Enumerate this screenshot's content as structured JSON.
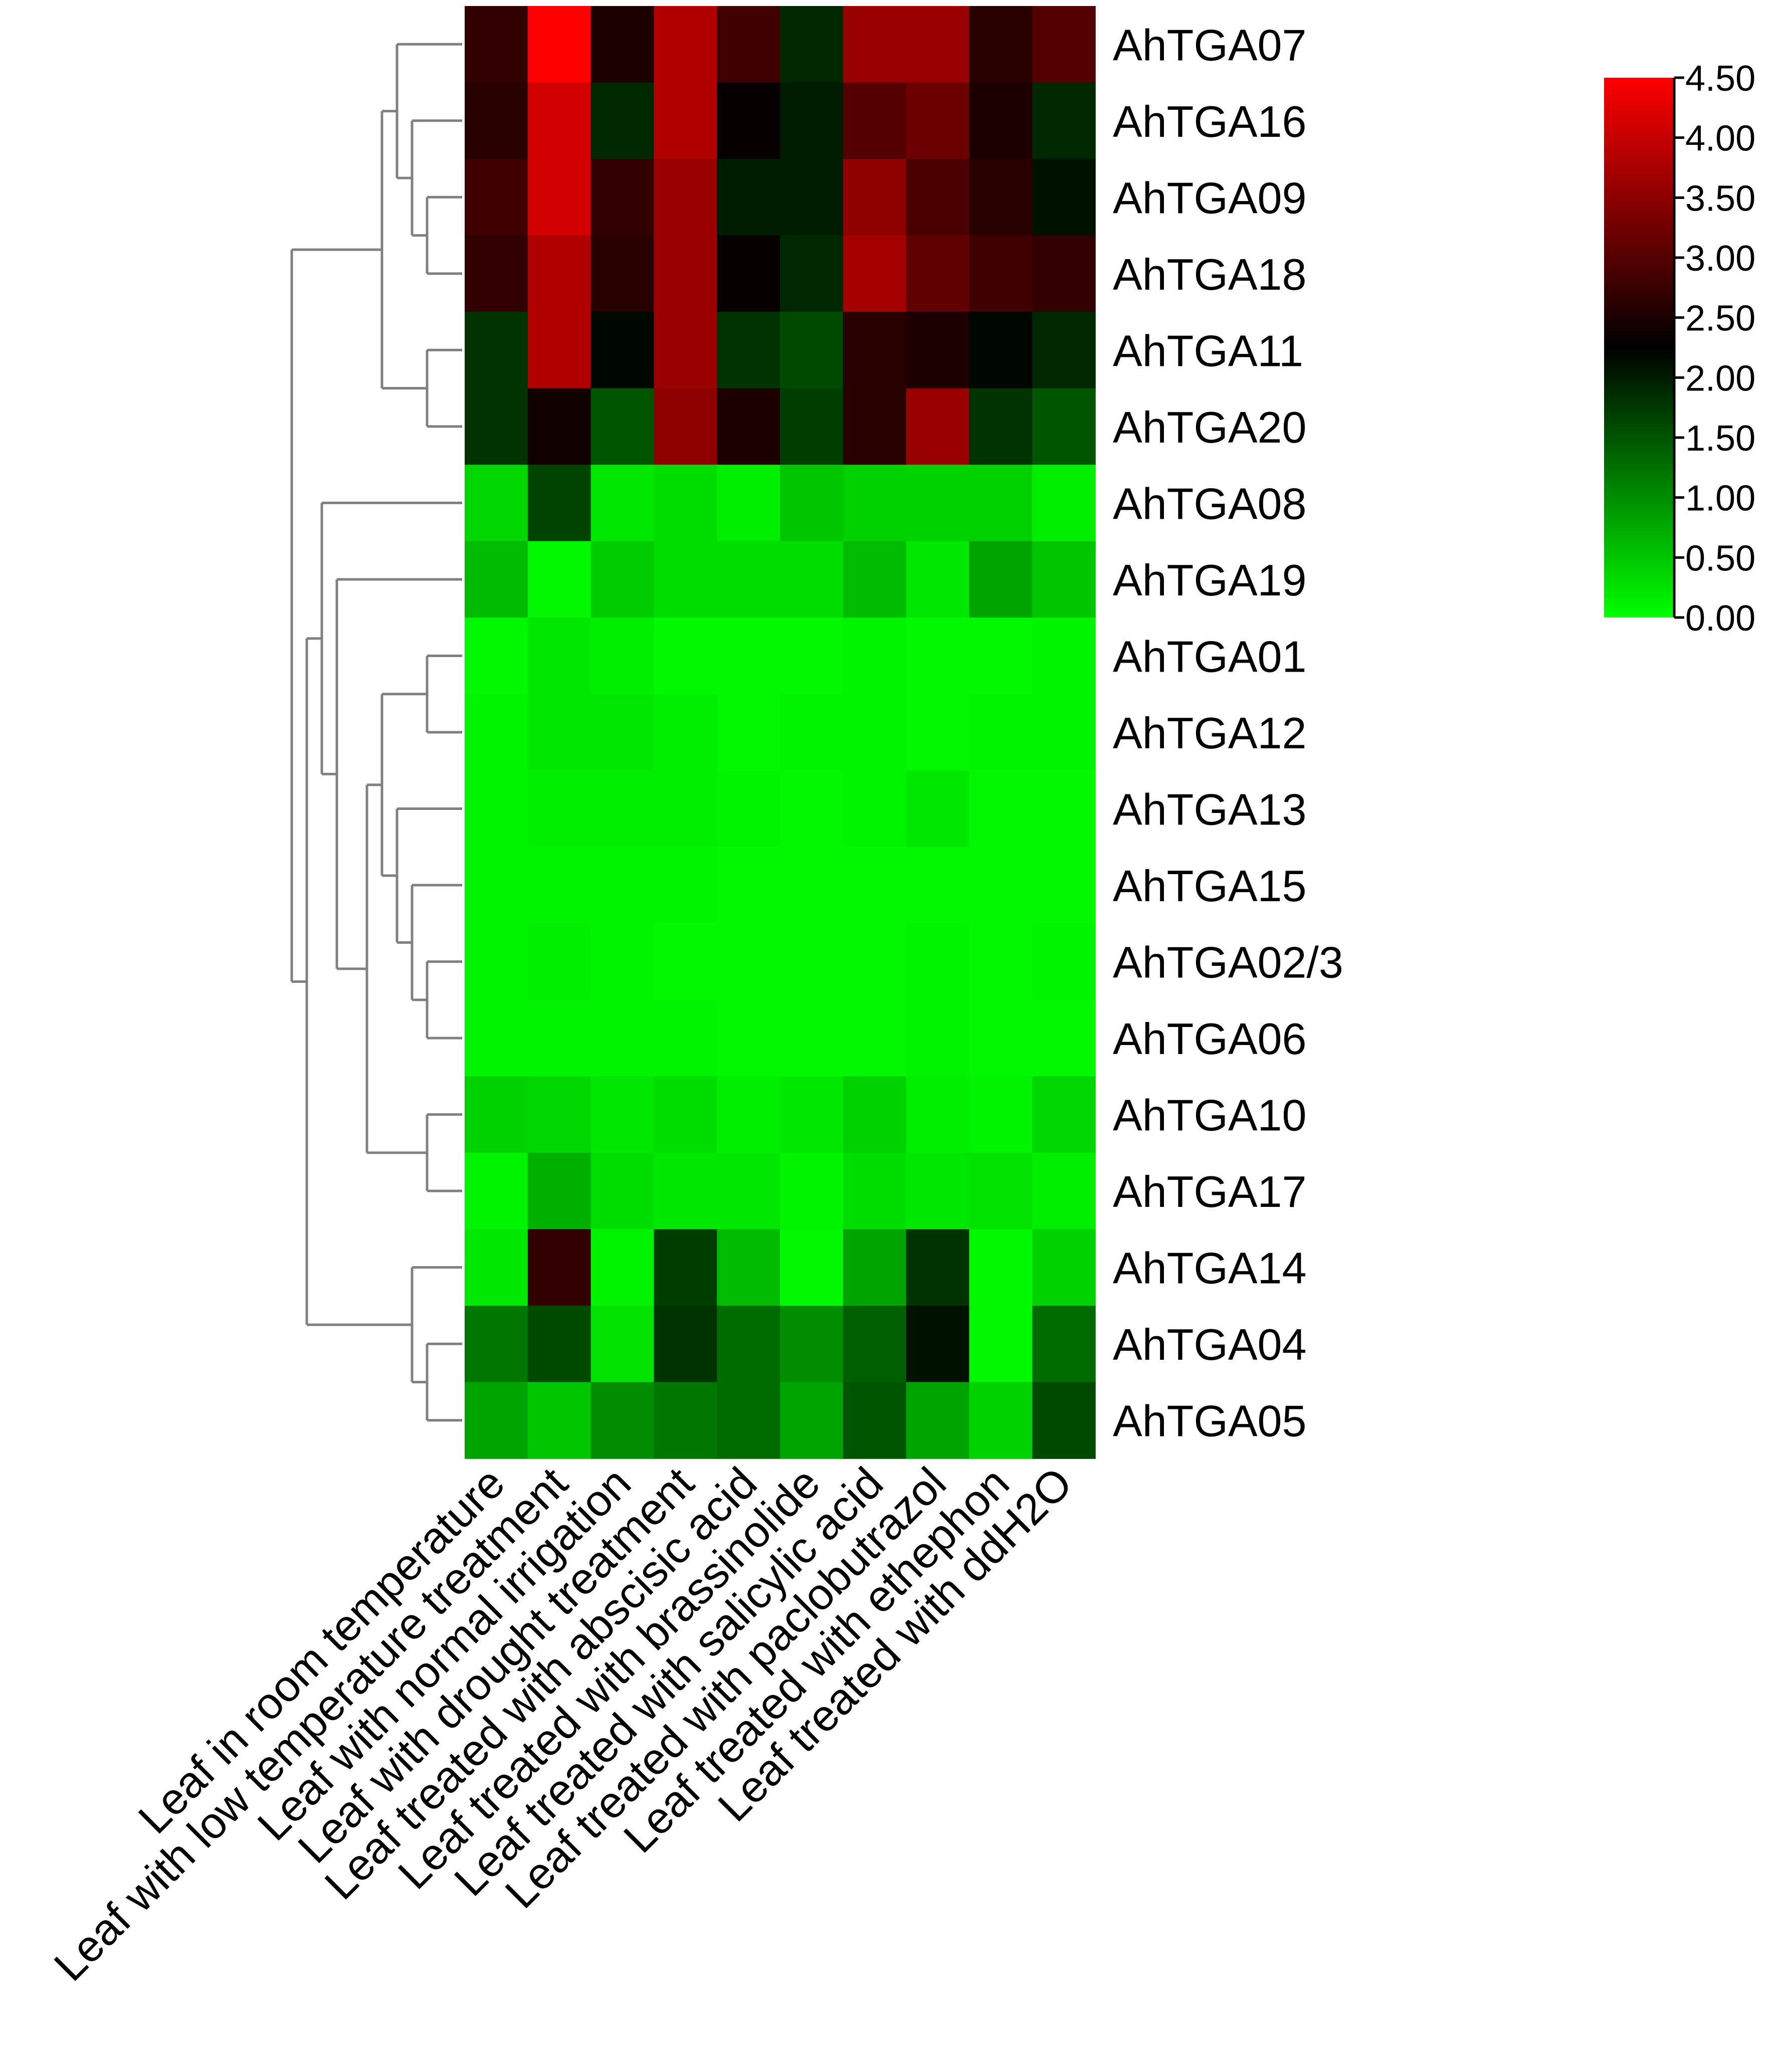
{
  "chart_data": {
    "type": "heatmap",
    "title": "",
    "xlabel": "",
    "ylabel": "",
    "rows": [
      "AhTGA07",
      "AhTGA16",
      "AhTGA09",
      "AhTGA18",
      "AhTGA11",
      "AhTGA20",
      "AhTGA08",
      "AhTGA19",
      "AhTGA01",
      "AhTGA12",
      "AhTGA13",
      "AhTGA15",
      "AhTGA02/3",
      "AhTGA06",
      "AhTGA10",
      "AhTGA17",
      "AhTGA14",
      "AhTGA04",
      "AhTGA05"
    ],
    "columns": [
      "Leaf in room temperature",
      "Leaf with low temperature treatment",
      "Leaf with normal irrigation",
      "Leaf with drought treatment",
      "Leaf treated with abscisic acid",
      "Leaf treated with brassinolide",
      "Leaf treated with salicylic acid",
      "Leaf treated with paclobutrazol",
      "Leaf treated with ethephon",
      "Leaf treated with ddH2O"
    ],
    "values": [
      [
        2.7,
        4.5,
        2.5,
        3.8,
        2.8,
        1.9,
        3.6,
        3.6,
        2.6,
        3.0
      ],
      [
        2.6,
        4.1,
        1.9,
        3.8,
        2.3,
        2.0,
        3.0,
        3.2,
        2.5,
        1.9
      ],
      [
        2.8,
        4.1,
        2.7,
        3.6,
        2.0,
        2.0,
        3.5,
        2.9,
        2.6,
        2.1
      ],
      [
        2.7,
        3.8,
        2.6,
        3.6,
        2.3,
        1.9,
        3.7,
        3.1,
        2.8,
        2.7
      ],
      [
        1.8,
        3.8,
        2.2,
        3.6,
        1.8,
        1.6,
        2.6,
        2.5,
        2.2,
        1.9
      ],
      [
        1.8,
        2.4,
        1.5,
        3.5,
        2.5,
        1.7,
        2.6,
        3.6,
        1.8,
        1.5
      ],
      [
        0.35,
        1.65,
        0.2,
        0.3,
        0.15,
        0.5,
        0.4,
        0.4,
        0.4,
        0.15
      ],
      [
        0.6,
        0.05,
        0.45,
        0.3,
        0.3,
        0.3,
        0.6,
        0.2,
        0.8,
        0.5
      ],
      [
        0.05,
        0.2,
        0.15,
        0.05,
        0.05,
        0.05,
        0.1,
        0.05,
        0.05,
        0.1
      ],
      [
        0.1,
        0.2,
        0.2,
        0.15,
        0.05,
        0.1,
        0.1,
        0.05,
        0.1,
        0.1
      ],
      [
        0.1,
        0.15,
        0.15,
        0.15,
        0.1,
        0.05,
        0.1,
        0.2,
        0.05,
        0.05
      ],
      [
        0.1,
        0.1,
        0.1,
        0.1,
        0.05,
        0.05,
        0.05,
        0.05,
        0.05,
        0.05
      ],
      [
        0.1,
        0.15,
        0.1,
        0.05,
        0.05,
        0.05,
        0.05,
        0.1,
        0.05,
        0.1
      ],
      [
        0.1,
        0.1,
        0.1,
        0.1,
        0.05,
        0.05,
        0.05,
        0.1,
        0.05,
        0.05
      ],
      [
        0.4,
        0.35,
        0.2,
        0.3,
        0.15,
        0.2,
        0.4,
        0.15,
        0.1,
        0.35
      ],
      [
        0.1,
        0.7,
        0.3,
        0.2,
        0.2,
        0.1,
        0.3,
        0.2,
        0.25,
        0.15
      ],
      [
        0.2,
        2.7,
        0.1,
        1.7,
        0.6,
        0.05,
        0.8,
        1.8,
        0.05,
        0.4
      ],
      [
        1.2,
        1.6,
        0.25,
        1.8,
        1.3,
        1.0,
        1.4,
        2.1,
        0.05,
        1.3
      ],
      [
        0.8,
        0.5,
        1.0,
        1.2,
        1.3,
        0.8,
        1.5,
        0.8,
        0.4,
        1.6
      ]
    ],
    "colorbar": {
      "range": [
        0.0,
        4.5
      ],
      "ticks": [
        "4.50",
        "4.00",
        "3.50",
        "3.00",
        "2.50",
        "2.00",
        "1.50",
        "1.00",
        "0.50",
        "0.00"
      ],
      "colors": {
        "low": "#00ff00",
        "mid": "#000000",
        "high": "#ff0000"
      },
      "placement": "top-right"
    },
    "dendrogram": {
      "side": "left",
      "color": "#808080",
      "tree": [
        [
          [
            [
              [
                "AhTGA07"
              ],
              [
                [
                  "AhTGA16"
                ],
                [
                  [
                    "AhTGA09"
                  ],
                  [
                    "AhTGA18"
                  ]
                ]
              ]
            ],
            [
              [
                "AhTGA11"
              ],
              [
                "AhTGA20"
              ]
            ]
          ]
        ],
        [
          [
            [
              "AhTGA08"
            ],
            [
              [
                "AhTGA19"
              ],
              [
                [
                  [
                    [
                      [
                        "AhTGA01"
                      ],
                      [
                        "AhTGA12"
                      ]
                    ],
                    [
                      [
                        "AhTGA13"
                      ],
                      [
                        [
                          "AhTGA15"
                        ],
                        [
                          [
                            "AhTGA02/3"
                          ],
                          [
                            "AhTGA06"
                          ]
                        ]
                      ]
                    ]
                  ],
                  [
                    [
                      "AhTGA10"
                    ],
                    [
                      "AhTGA17"
                    ]
                  ]
                ]
              ]
            ]
          ],
          [
            [
              "AhTGA14"
            ],
            [
              [
                "AhTGA04"
              ],
              [
                "AhTGA05"
              ]
            ]
          ]
        ]
      ]
    }
  }
}
